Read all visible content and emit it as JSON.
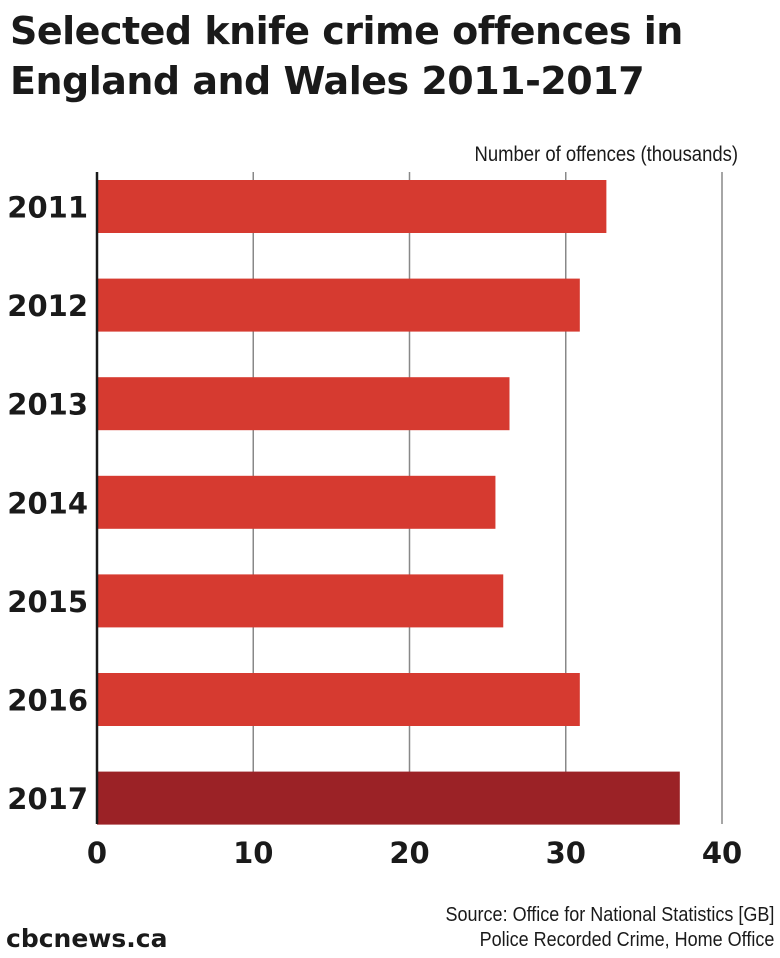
{
  "title_line1": "Selected knife crime offences in",
  "title_line2": "England and Wales 2011-2017",
  "chart_data": {
    "type": "bar",
    "orientation": "horizontal",
    "title": "Selected knife crime offences in England and Wales 2011-2017",
    "xlabel": "Number of offences (thousands)",
    "ylabel": "",
    "categories": [
      "2011",
      "2012",
      "2013",
      "2014",
      "2015",
      "2016",
      "2017"
    ],
    "values": [
      32.6,
      30.9,
      26.4,
      25.5,
      26.0,
      30.9,
      37.3
    ],
    "xlim": [
      0,
      40
    ],
    "x_ticks": [
      "0",
      "10",
      "20",
      "30",
      "40"
    ],
    "grid": true,
    "colors": {
      "bar": "#d63a30",
      "highlight": "#9b2226",
      "grid": "#888888",
      "axis": "#1a1a1a"
    },
    "highlight_category": "2017"
  },
  "footer": {
    "logo": "cbcnews.ca",
    "source_line1": "Source: Office for National Statistics [GB]",
    "source_line2": "Police Recorded Crime, Home Office"
  }
}
